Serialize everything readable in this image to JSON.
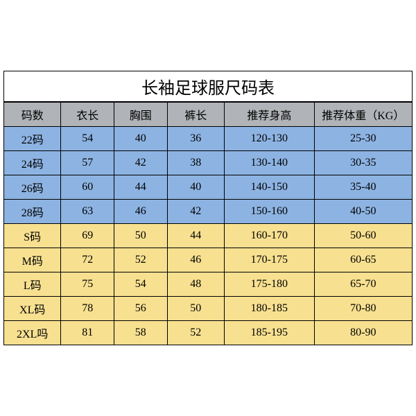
{
  "table": {
    "title": "长袖足球服尺码表",
    "columns": [
      "码数",
      "衣长",
      "胸围",
      "裤长",
      "推荐身高",
      "推荐体重（KG）"
    ],
    "column_widths_pct": [
      14,
      13,
      13,
      14,
      22,
      24
    ],
    "header_bg": "#b0b3b7",
    "row_group_colors": {
      "blue": "#8db3e2",
      "yellow": "#f7e090"
    },
    "border_color": "#000000",
    "title_fontsize": 24,
    "cell_fontsize": 16,
    "rows": [
      {
        "group": "blue",
        "cells": [
          "22码",
          "54",
          "40",
          "36",
          "120-130",
          "25-30"
        ]
      },
      {
        "group": "blue",
        "cells": [
          "24码",
          "57",
          "42",
          "38",
          "130-140",
          "30-35"
        ]
      },
      {
        "group": "blue",
        "cells": [
          "26码",
          "60",
          "44",
          "40",
          "140-150",
          "35-40"
        ]
      },
      {
        "group": "blue",
        "cells": [
          "28码",
          "63",
          "46",
          "42",
          "150-160",
          "40-50"
        ]
      },
      {
        "group": "yellow",
        "cells": [
          "S码",
          "69",
          "50",
          "44",
          "160-170",
          "50-60"
        ]
      },
      {
        "group": "yellow",
        "cells": [
          "M码",
          "72",
          "52",
          "46",
          "170-175",
          "60-65"
        ]
      },
      {
        "group": "yellow",
        "cells": [
          "L码",
          "75",
          "54",
          "48",
          "175-180",
          "65-70"
        ]
      },
      {
        "group": "yellow",
        "cells": [
          "XL码",
          "78",
          "56",
          "50",
          "180-185",
          "70-80"
        ]
      },
      {
        "group": "yellow",
        "cells": [
          "2XL吗",
          "81",
          "58",
          "52",
          "185-195",
          "80-90"
        ]
      }
    ]
  }
}
